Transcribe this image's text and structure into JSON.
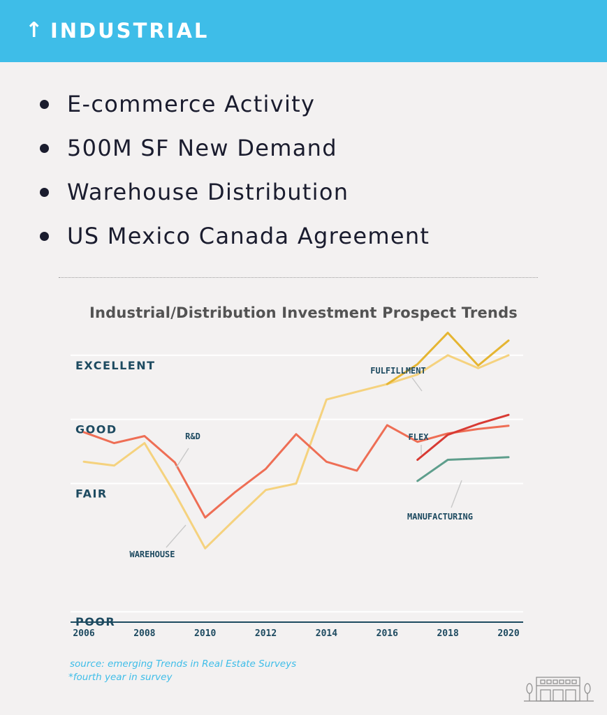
{
  "header": {
    "arrow": "↑",
    "title": "INDUSTRIAL",
    "background_color": "#3ebde8"
  },
  "bullets": [
    "E-commerce Activity",
    "500M SF New Demand",
    "Warehouse Distribution",
    "US Mexico Canada Agreement"
  ],
  "footer": {
    "source": "source: emerging Trends in Real Estate Surveys",
    "footnote": "*fourth year in survey",
    "icon": "building-icon"
  },
  "chart_data": {
    "type": "line",
    "title": "Industrial/Distribution Investment Prospect Trends",
    "xlabel": "",
    "ylabel": "",
    "xlim": [
      2006,
      2020
    ],
    "ylim": [
      0.85,
      5.15
    ],
    "x_ticks": [
      "2006",
      "2008",
      "2010",
      "2012",
      "2014",
      "2016",
      "2018",
      "2020"
    ],
    "y_levels": [
      {
        "label": "EXCELLENT",
        "value": 5
      },
      {
        "label": "GOOD",
        "value": 4
      },
      {
        "label": "FAIR",
        "value": 3
      },
      {
        "label": "POOR",
        "value": 1
      }
    ],
    "grid": true,
    "series": [
      {
        "name": "WAREHOUSE",
        "color": "#f5d27e",
        "x": [
          2006,
          2007,
          2008,
          2009,
          2010,
          2011,
          2012,
          2013,
          2014,
          2015,
          2016,
          2017,
          2018,
          2019,
          2020
        ],
        "y": [
          3.34,
          3.28,
          3.63,
          2.85,
          1.99,
          2.45,
          2.9,
          3.0,
          4.31,
          4.43,
          4.55,
          4.7,
          5.0,
          4.8,
          5.0
        ]
      },
      {
        "name": "R&D",
        "color": "#ee6e55",
        "x": [
          2006,
          2007,
          2008,
          2009,
          2010,
          2011,
          2012,
          2013,
          2014,
          2015,
          2016,
          2017,
          2018,
          2019,
          2020
        ],
        "y": [
          3.8,
          3.63,
          3.74,
          3.33,
          2.47,
          2.87,
          3.23,
          3.77,
          3.34,
          3.2,
          3.91,
          3.65,
          3.78,
          3.85,
          3.9
        ]
      },
      {
        "name": "FULFILLMENT",
        "color": "#e5b532",
        "x": [
          2016,
          2017,
          2018,
          2019,
          2020
        ],
        "y": [
          4.55,
          4.86,
          5.35,
          4.84,
          5.23
        ]
      },
      {
        "name": "FLEX",
        "color": "#d83a33",
        "x": [
          2017,
          2018,
          2019,
          2020
        ],
        "y": [
          3.37,
          3.76,
          3.93,
          4.07
        ]
      },
      {
        "name": "MANUFACTURING",
        "color": "#5e9e8c",
        "x": [
          2017,
          2018,
          2019,
          2020
        ],
        "y": [
          3.04,
          3.37,
          3.39,
          3.41
        ]
      }
    ]
  }
}
